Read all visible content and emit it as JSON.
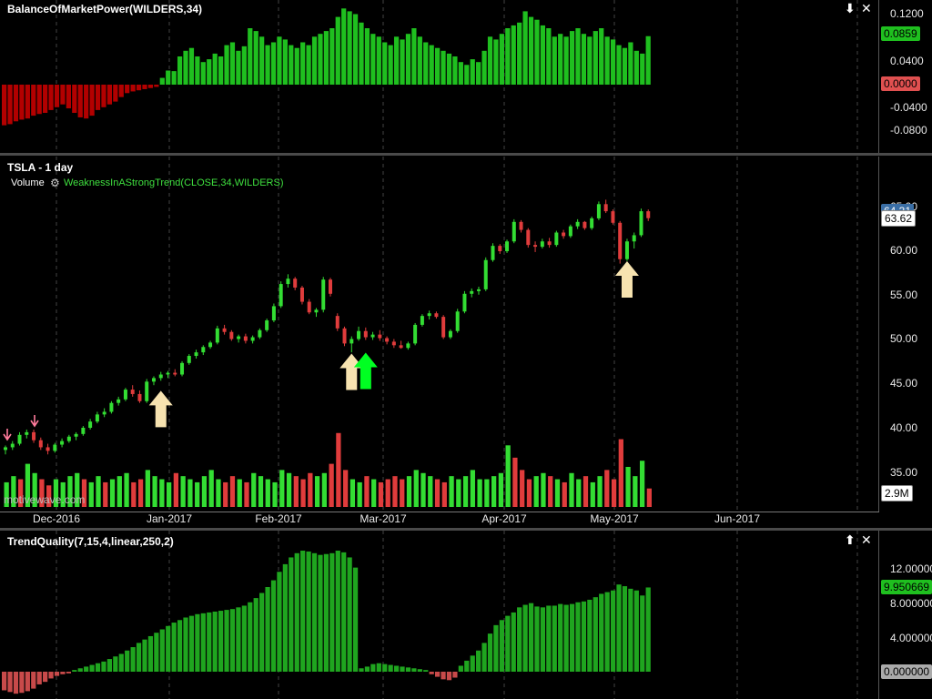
{
  "top_panel": {
    "title": "BalanceOfMarketPower(WILDERS,34)",
    "y_ticks": [
      "0.1200",
      "0.0400",
      "-0.0400",
      "-0.0800"
    ],
    "y_ticks_mid": "0.0000",
    "last_value": "0.0859",
    "zero_badge": "0.0000",
    "controls": {
      "down": "⬇",
      "close": "✕"
    },
    "colors": {
      "positive": "#1fbf1f",
      "negative": "#b30000"
    }
  },
  "main_panel": {
    "symbol_label": "TSLA - 1 day",
    "volume_label": "Volume",
    "study_label": "WeaknessInAStrongTrend(CLOSE,34,WILDERS)",
    "y_ticks": [
      "65.00",
      "60.00",
      "55.00",
      "50.00",
      "45.00",
      "40.00",
      "35.00"
    ],
    "price_badge": "63.62",
    "price_badge_under": "64.31",
    "volume_badge": "2.9M",
    "watermark": "motivewave.com",
    "colors": {
      "up": "#33dd33",
      "down": "#e03c3c",
      "arrow_cream": "#f7e3b0",
      "arrow_green": "#00ff22"
    }
  },
  "date_axis": {
    "labels": [
      "Dec-2016",
      "Jan-2017",
      "Feb-2017",
      "Mar-2017",
      "Apr-2017",
      "May-2017",
      "Jun-2017"
    ]
  },
  "bottom_panel": {
    "title": "TrendQuality(7,15,4,linear,250,2)",
    "y_ticks": [
      "12.000000",
      "8.000000",
      "4.000000"
    ],
    "last_value": "9.950669",
    "zero_badge": "0.000000",
    "controls": {
      "up": "⬆",
      "close": "✕"
    }
  },
  "chart_data": [
    {
      "type": "bar",
      "title": "BalanceOfMarketPower(WILDERS,34)",
      "ylim": [
        -0.1,
        0.14
      ],
      "values": [
        -0.072,
        -0.07,
        -0.065,
        -0.062,
        -0.06,
        -0.055,
        -0.052,
        -0.05,
        -0.045,
        -0.04,
        -0.035,
        -0.042,
        -0.05,
        -0.058,
        -0.06,
        -0.055,
        -0.045,
        -0.04,
        -0.035,
        -0.03,
        -0.022,
        -0.015,
        -0.012,
        -0.01,
        -0.008,
        -0.006,
        -0.004,
        0.012,
        0.025,
        0.024,
        0.05,
        0.06,
        0.065,
        0.05,
        0.04,
        0.045,
        0.055,
        0.05,
        0.07,
        0.075,
        0.06,
        0.068,
        0.1,
        0.095,
        0.085,
        0.07,
        0.075,
        0.085,
        0.08,
        0.07,
        0.065,
        0.075,
        0.07,
        0.085,
        0.09,
        0.095,
        0.1,
        0.12,
        0.135,
        0.13,
        0.125,
        0.11,
        0.1,
        0.09,
        0.085,
        0.075,
        0.07,
        0.085,
        0.08,
        0.09,
        0.1,
        0.085,
        0.075,
        0.07,
        0.065,
        0.06,
        0.055,
        0.05,
        0.04,
        0.035,
        0.045,
        0.04,
        0.06,
        0.085,
        0.08,
        0.09,
        0.1,
        0.105,
        0.11,
        0.13,
        0.12,
        0.115,
        0.105,
        0.1,
        0.085,
        0.09,
        0.085,
        0.095,
        0.1,
        0.09,
        0.085,
        0.095,
        0.1,
        0.085,
        0.08,
        0.07,
        0.065,
        0.075,
        0.06,
        0.055,
        0.0859
      ]
    },
    {
      "type": "candlestick",
      "title": "TSLA - 1 day",
      "ylim": [
        32,
        70
      ],
      "candles": [
        [
          37.5,
          38,
          37,
          37.8
        ],
        [
          37.8,
          38.5,
          37.5,
          38.2
        ],
        [
          38.2,
          39.5,
          38,
          39.2
        ],
        [
          39.2,
          39.8,
          38.8,
          39.5
        ],
        [
          39.5,
          39.8,
          38.3,
          38.6
        ],
        [
          38.6,
          38.9,
          37.5,
          37.8
        ],
        [
          37.8,
          38.2,
          37,
          37.4
        ],
        [
          37.4,
          38.3,
          37.2,
          38.1
        ],
        [
          38.1,
          38.8,
          37.8,
          38.5
        ],
        [
          38.5,
          39.2,
          38.3,
          39.0
        ],
        [
          39,
          39.5,
          38.6,
          39.3
        ],
        [
          39.3,
          40.2,
          39.1,
          40
        ],
        [
          40,
          41,
          39.8,
          40.7
        ],
        [
          40.7,
          41.8,
          40.5,
          41.5
        ],
        [
          41.5,
          42.2,
          41.2,
          41.8
        ],
        [
          41.8,
          43,
          41.6,
          42.8
        ],
        [
          42.8,
          43.5,
          42.5,
          43.2
        ],
        [
          43.2,
          44.5,
          43,
          44.3
        ],
        [
          44.3,
          44.8,
          43.5,
          43.8
        ],
        [
          43.8,
          44.2,
          42.8,
          43.0
        ],
        [
          43,
          45.5,
          42.8,
          45.2
        ],
        [
          45.2,
          45.8,
          44.8,
          45.6
        ],
        [
          45.6,
          46.3,
          45.3,
          46.0
        ],
        [
          46,
          46.4,
          45.6,
          46.2
        ],
        [
          46.2,
          46.6,
          45.8,
          46.0
        ],
        [
          46,
          47.5,
          45.8,
          47.3
        ],
        [
          47.3,
          48.3,
          47.1,
          48.1
        ],
        [
          48.1,
          48.8,
          47.8,
          48.5
        ],
        [
          48.5,
          49.3,
          48.2,
          49.1
        ],
        [
          49.1,
          49.8,
          48.9,
          49.6
        ],
        [
          49.6,
          51.5,
          49.4,
          51.2
        ],
        [
          51.2,
          51.6,
          50.5,
          50.8
        ],
        [
          50.8,
          51,
          49.8,
          50.0
        ],
        [
          50,
          50.5,
          49.6,
          50.3
        ],
        [
          50.3,
          50.6,
          49.5,
          49.8
        ],
        [
          49.8,
          50.4,
          49.5,
          50.2
        ],
        [
          50.2,
          51.2,
          50,
          51.0
        ],
        [
          51,
          52.3,
          50.8,
          52.1
        ],
        [
          52.1,
          54,
          51.9,
          53.7
        ],
        [
          53.7,
          56.5,
          53.5,
          56.2
        ],
        [
          56.2,
          57.3,
          55.8,
          56.8
        ],
        [
          56.8,
          57,
          55.5,
          55.8
        ],
        [
          55.8,
          56,
          53.9,
          54.2
        ],
        [
          54.2,
          54.5,
          52.8,
          53.0
        ],
        [
          53,
          53.5,
          52.5,
          53.3
        ],
        [
          53.3,
          57,
          53,
          56.7
        ],
        [
          56.7,
          56.9,
          54.8,
          55.1
        ],
        [
          52.6,
          52.9,
          50.9,
          51.2
        ],
        [
          51.2,
          51.4,
          49.2,
          49.5
        ],
        [
          49.5,
          50.3,
          48.5,
          50.0
        ],
        [
          50,
          51.4,
          49.8,
          50.9
        ],
        [
          50.9,
          51.3,
          49.9,
          50.2
        ],
        [
          50.2,
          50.8,
          49.9,
          50.5
        ],
        [
          50.5,
          51,
          49.8,
          50.1
        ],
        [
          50.1,
          50.3,
          49.4,
          49.7
        ],
        [
          49.7,
          50,
          49,
          49.3
        ],
        [
          49.3,
          49.8,
          48.9,
          49.0
        ],
        [
          49,
          49.7,
          48.8,
          49.5
        ],
        [
          49.5,
          51.8,
          49.3,
          51.6
        ],
        [
          51.6,
          52.8,
          51.4,
          52.6
        ],
        [
          52.6,
          53.2,
          52.2,
          52.9
        ],
        [
          52.9,
          53.1,
          52.3,
          52.5
        ],
        [
          52.5,
          52.7,
          50.0,
          50.2
        ],
        [
          50.2,
          51.1,
          50.0,
          50.9
        ],
        [
          50.9,
          53.4,
          50.7,
          53.1
        ],
        [
          53.1,
          55.4,
          52.9,
          55.1
        ],
        [
          55.1,
          55.7,
          54.7,
          55.4
        ],
        [
          55.4,
          55.9,
          55.0,
          55.6
        ],
        [
          55.6,
          59.2,
          55.4,
          58.9
        ],
        [
          58.9,
          60.8,
          58.7,
          60.5
        ],
        [
          60.5,
          60.7,
          59.6,
          59.9
        ],
        [
          59.9,
          61.2,
          59.7,
          61.0
        ],
        [
          61,
          63.5,
          60.8,
          63.2
        ],
        [
          63.2,
          63.4,
          62,
          62.3
        ],
        [
          62.3,
          62.5,
          60.3,
          60.6
        ],
        [
          60.6,
          61,
          59.8,
          60.4
        ],
        [
          60.4,
          61.3,
          60.2,
          61.0
        ],
        [
          61,
          61.4,
          60.3,
          60.6
        ],
        [
          60.6,
          62.2,
          60.4,
          62.0
        ],
        [
          62,
          62.3,
          61.3,
          61.6
        ],
        [
          61.6,
          62.9,
          61.4,
          62.7
        ],
        [
          62.7,
          63.5,
          62.4,
          63.2
        ],
        [
          63.2,
          63.3,
          62.3,
          62.5
        ],
        [
          62.5,
          63.8,
          62.3,
          63.6
        ],
        [
          63.6,
          65.5,
          63.4,
          65.2
        ],
        [
          65.2,
          65.7,
          64.2,
          64.4
        ],
        [
          64.4,
          64.6,
          62.9,
          63.1
        ],
        [
          63.1,
          63.3,
          58.5,
          59.0
        ],
        [
          59,
          61.3,
          58.8,
          61.0
        ],
        [
          61,
          62,
          60.2,
          61.7
        ],
        [
          61.7,
          64.7,
          61.5,
          64.4
        ],
        [
          64.4,
          64.6,
          63.3,
          63.62
        ]
      ],
      "volume": [
        8,
        10,
        9,
        14,
        11,
        9,
        7,
        9,
        8,
        10,
        11,
        9,
        8,
        10,
        8,
        9,
        10,
        11,
        8,
        9,
        12,
        10,
        9,
        8,
        11,
        10,
        9,
        8,
        10,
        12,
        9,
        8,
        10,
        9,
        8,
        11,
        10,
        9,
        8,
        12,
        11,
        10,
        9,
        11,
        10,
        11,
        14,
        24,
        12,
        9,
        8,
        10,
        9,
        8,
        9,
        10,
        9,
        10,
        12,
        11,
        10,
        9,
        8,
        10,
        9,
        10,
        12,
        9,
        9,
        10,
        11,
        20,
        16,
        12,
        9,
        10,
        11,
        10,
        9,
        8,
        11,
        9,
        10,
        8,
        10,
        12,
        9,
        22,
        13,
        10,
        15,
        6
      ],
      "volume_down": [
        false,
        false,
        true,
        false,
        false,
        true,
        true,
        false,
        false,
        false,
        false,
        true,
        false,
        false,
        true,
        false,
        false,
        false,
        true,
        true,
        false,
        false,
        false,
        false,
        true,
        false,
        false,
        false,
        false,
        false,
        false,
        true,
        true,
        false,
        true,
        false,
        false,
        false,
        false,
        false,
        false,
        true,
        true,
        true,
        false,
        false,
        true,
        true,
        true,
        false,
        false,
        true,
        false,
        true,
        true,
        true,
        true,
        false,
        false,
        false,
        false,
        true,
        true,
        false,
        false,
        false,
        false,
        false,
        false,
        false,
        false,
        false,
        true,
        true,
        true,
        false,
        false,
        true,
        false,
        true,
        false,
        false,
        true,
        false,
        false,
        true,
        true,
        true,
        false,
        false,
        false,
        true
      ],
      "markers": [
        {
          "type": "arrow_up",
          "color": "cream",
          "bar": 22
        },
        {
          "type": "arrow_up",
          "color": "cream",
          "bar": 49
        },
        {
          "type": "arrow_up",
          "color": "green",
          "bar": 51
        },
        {
          "type": "arrow_up",
          "color": "cream",
          "bar": 88
        }
      ]
    },
    {
      "type": "bar",
      "title": "TrendQuality(7,15,4,linear,250,2)",
      "ylim": [
        -3,
        15
      ],
      "values": [
        -2.2,
        -2.4,
        -2.6,
        -2.5,
        -2.3,
        -2.0,
        -1.5,
        -1.2,
        -0.8,
        -0.5,
        -0.3,
        -0.2,
        0.2,
        0.4,
        0.6,
        0.8,
        1.0,
        1.2,
        1.5,
        1.8,
        2.1,
        2.5,
        2.9,
        3.4,
        3.8,
        4.2,
        4.6,
        5.0,
        5.4,
        5.8,
        6.1,
        6.4,
        6.6,
        6.8,
        6.9,
        7.0,
        7.1,
        7.2,
        7.3,
        7.4,
        7.6,
        7.8,
        8.2,
        8.7,
        9.3,
        10,
        10.8,
        11.8,
        12.7,
        13.5,
        14.0,
        14.3,
        14.2,
        14.0,
        13.8,
        13.9,
        14.0,
        14.3,
        14.1,
        13.5,
        12.3,
        0.4,
        0.6,
        0.9,
        1.0,
        0.9,
        0.8,
        0.7,
        0.6,
        0.5,
        0.4,
        0.3,
        0.2,
        -0.3,
        -0.6,
        -0.9,
        -1.0,
        -0.7,
        0.7,
        1.3,
        1.9,
        2.5,
        3.4,
        4.5,
        5.5,
        6.1,
        6.6,
        7.0,
        7.6,
        7.9,
        8.1,
        7.7,
        7.6,
        7.8,
        7.8,
        8.0,
        7.9,
        8.0,
        8.2,
        8.3,
        8.5,
        8.8,
        9.2,
        9.4,
        9.6,
        10.3,
        10.1,
        9.8,
        9.6,
        9.0,
        9.950669
      ]
    }
  ]
}
